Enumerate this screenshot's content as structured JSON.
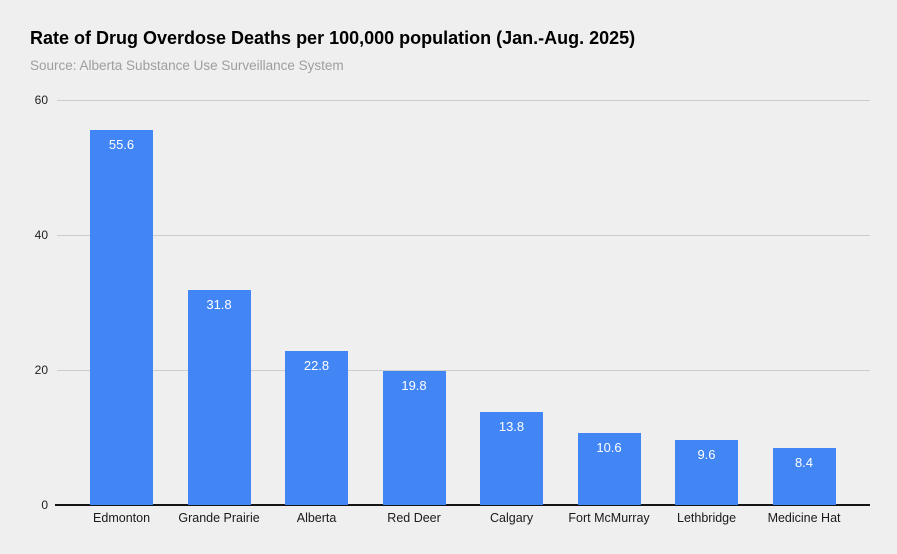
{
  "title": "Rate of Drug Overdose Deaths per 100,000 population (Jan.-Aug. 2025)",
  "subtitle": "Source: Alberta Substance Use Surveillance System",
  "chart_data": {
    "type": "bar",
    "title": "Rate of Drug Overdose Deaths per 100,000 population (Jan.-Aug. 2025)",
    "subtitle": "Source: Alberta Substance Use Surveillance System",
    "categories": [
      "Edmonton",
      "Grande Prairie",
      "Alberta",
      "Red Deer",
      "Calgary",
      "Fort McMurray",
      "Lethbridge",
      "Medicine Hat"
    ],
    "values": [
      55.6,
      31.8,
      22.8,
      19.8,
      13.8,
      10.6,
      9.6,
      8.4
    ],
    "value_labels": [
      "55.6",
      "31.8",
      "22.8",
      "19.8",
      "13.8",
      "10.6",
      "9.6",
      "8.4"
    ],
    "xlabel": "",
    "ylabel": "",
    "ylim": [
      0,
      60
    ],
    "yticks": [
      0,
      20,
      40,
      60
    ],
    "grid": "horizontal",
    "legend": "none",
    "colors": {
      "bar": "#4285f4",
      "background": "#efefef",
      "gridline": "#cccccc",
      "axis_line": "#141414",
      "value_label": "#ffffff",
      "tick_label": "#212121",
      "category_label": "#1a1a1a",
      "title": "#000000",
      "subtitle": "#9e9e9e"
    }
  }
}
